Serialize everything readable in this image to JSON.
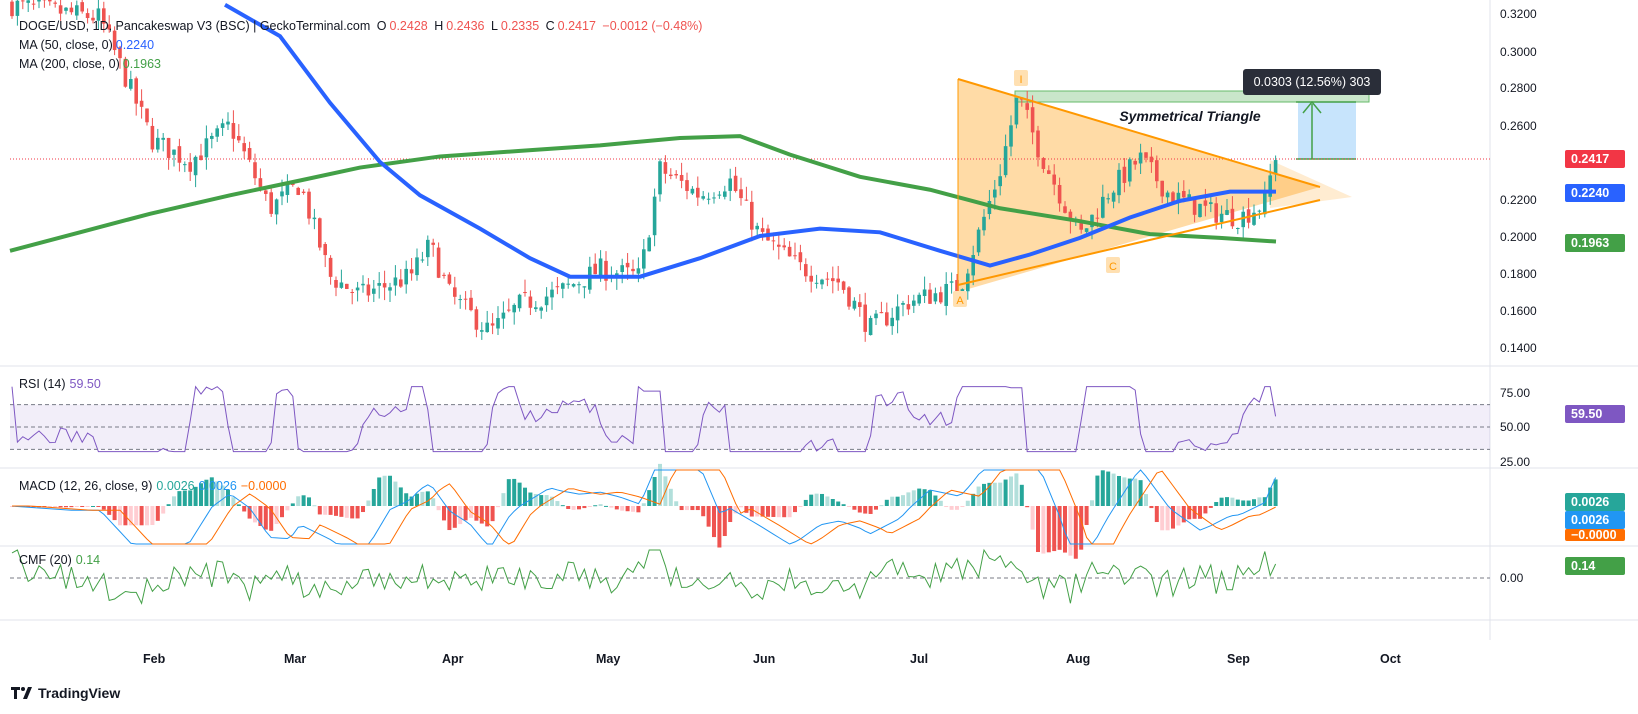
{
  "header": {
    "symbol": "DOGE/USD, 1D, Pancakeswap V3 (BSC) | GeckoTerminal.com",
    "open_label": "O",
    "open": "0.2428",
    "high_label": "H",
    "high": "0.2436",
    "low_label": "L",
    "low": "0.2335",
    "close_label": "C",
    "close": "0.2417",
    "change": "−0.0012 (−0.48%)",
    "ma50_label": "MA (50, close, 0)",
    "ma50_value": "0.2240",
    "ma200_label": "MA (200, close, 0)",
    "ma200_value": "0.1963"
  },
  "price_axis": [
    "0.3200",
    "0.3000",
    "0.2800",
    "0.2600",
    "0.2200",
    "0.2000",
    "0.1800",
    "0.1600",
    "0.1400"
  ],
  "price_badges": {
    "last": "0.2417",
    "ma50": "0.2240",
    "ma200": "0.1963"
  },
  "pattern": {
    "title": "Symmetrical Triangle",
    "points": [
      "I",
      "A",
      "C"
    ],
    "measure": "0.0303 (12.56%) 303"
  },
  "rsi": {
    "label": "RSI (14)",
    "value": "59.50",
    "axis": [
      "75.00",
      "50.00",
      "25.00"
    ]
  },
  "macd": {
    "label": "MACD (12, 26, close, 9)",
    "macd": "0.0026",
    "signal": "0.0026",
    "hist": "−0.0000",
    "badges": [
      "0.0026",
      "0.0026",
      "−0.0000"
    ]
  },
  "cmf": {
    "label": "CMF (20)",
    "value": "0.14",
    "axis": [
      "0.14",
      "0.00"
    ]
  },
  "time_axis": [
    "Feb",
    "Mar",
    "Apr",
    "May",
    "Jun",
    "Jul",
    "Aug",
    "Sep",
    "Oct"
  ],
  "brand": "TradingView",
  "colors": {
    "up": "#26a69a",
    "down": "#ef5350",
    "ma50": "#2962ff",
    "ma200": "#43a047",
    "triangle": "#ff9800",
    "rsi": "#7e57c2",
    "macd": "#2196f3",
    "signal": "#ff6d00",
    "cmf": "#43a047"
  },
  "chart_data": {
    "type": "candlestick",
    "title": "DOGE/USD, 1D",
    "ylim": [
      0.13,
      0.325
    ],
    "x_range": [
      "2024-01-01",
      "2024-10-15"
    ],
    "series": [
      {
        "name": "MA (200, close, 0)",
        "x": [
          "Jan",
          "Feb",
          "Mar",
          "Apr",
          "May",
          "Jun",
          "Jul",
          "Aug",
          "Sep"
        ],
        "values": [
          0.193,
          0.215,
          0.24,
          0.252,
          0.26,
          0.27,
          0.233,
          0.203,
          0.196
        ]
      },
      {
        "name": "MA (50, close, 0)",
        "x": [
          "Jan",
          "Feb",
          "Mar",
          "Apr",
          "May",
          "Jun",
          "Jul",
          "Aug",
          "Sep"
        ],
        "values": [
          0.32,
          0.3,
          0.245,
          0.2,
          0.177,
          0.205,
          0.188,
          0.208,
          0.224
        ]
      },
      {
        "name": "Close",
        "x": [
          "Jan",
          "Feb",
          "Mar",
          "Apr",
          "May",
          "Jun",
          "Jul",
          "Aug",
          "Sep"
        ],
        "values": [
          0.32,
          0.24,
          0.172,
          0.155,
          0.23,
          0.195,
          0.165,
          0.215,
          0.2417
        ]
      }
    ],
    "rsi": {
      "last": 59.5,
      "levels": [
        70,
        50,
        30
      ]
    },
    "macd": {
      "macd": 0.0026,
      "signal": 0.0026,
      "hist": -0.0
    },
    "cmf": {
      "last": 0.14
    }
  }
}
